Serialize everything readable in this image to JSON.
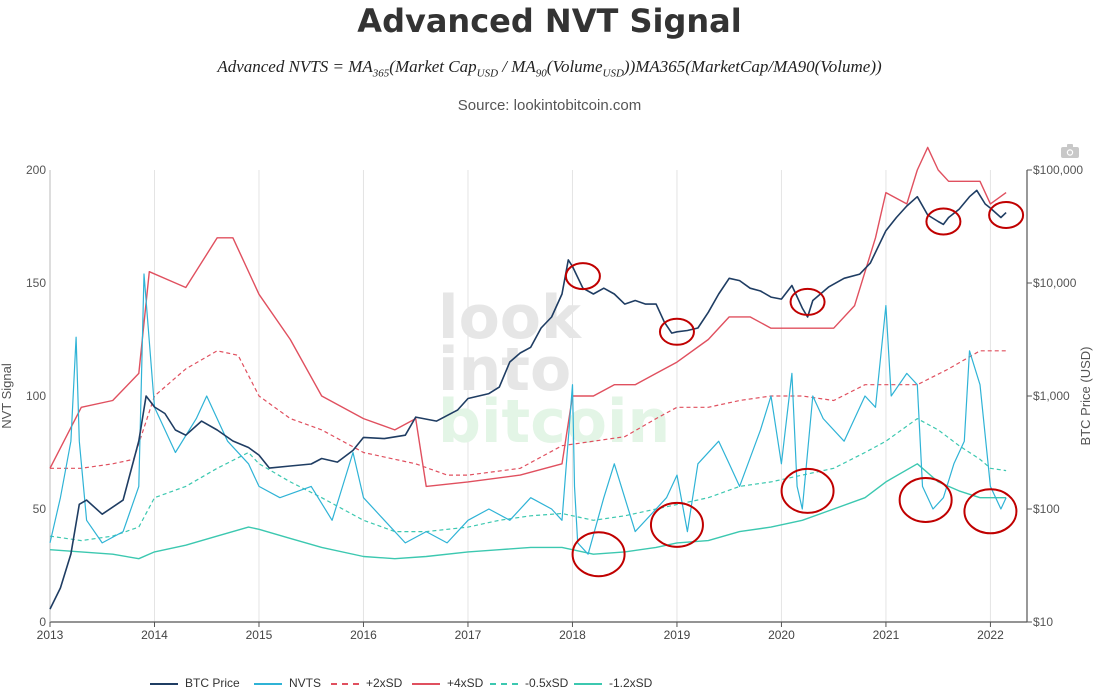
{
  "title": "Advanced NVT Signal",
  "formula": {
    "left": "Advanced NVTS = MA",
    "sub1": "365",
    "mid1": "(Market Cap",
    "sub2": "USD",
    "mid2": " / MA",
    "sub3": "90",
    "mid3": "(Volume",
    "sub4": "USD",
    "tail": "))MA365(MarketCap/MA90(Volume))"
  },
  "source": "Source: lookintobitcoin.com",
  "watermark": [
    "look",
    "into",
    "bitcoin"
  ],
  "camera_icon": "camera-icon",
  "chart_data": {
    "type": "line",
    "title": "Advanced NVT Signal",
    "x_ticks": [
      "2013",
      "2014",
      "2015",
      "2016",
      "2017",
      "2018",
      "2019",
      "2020",
      "2021",
      "2022"
    ],
    "x_range": [
      2013.0,
      2022.35
    ],
    "y_left": {
      "label": "NVT Signal",
      "ticks": [
        "0",
        "50",
        "100",
        "150",
        "200"
      ],
      "range": [
        0,
        200
      ]
    },
    "y_right": {
      "label": "BTC Price (USD)",
      "ticks": [
        "$10",
        "$100",
        "$1,000",
        "$10,000",
        "$100,000"
      ],
      "scale": "log",
      "range": [
        10,
        100000
      ]
    },
    "colors": {
      "btc": "#1f3d63",
      "nvts": "#2fb3d6",
      "plus2": "#e0505f",
      "plus4": "#e0505f",
      "minus05": "#3cc8b0",
      "minus12": "#3cc8b0",
      "circle": "#c00000",
      "grid": "#e4e4e4",
      "axis": "#555555"
    },
    "series": [
      {
        "name": "BTC Price",
        "axis": "right",
        "style": "solid",
        "x": [
          2013.0,
          2013.1,
          2013.2,
          2013.28,
          2013.35,
          2013.5,
          2013.7,
          2013.85,
          2013.92,
          2014.0,
          2014.1,
          2014.2,
          2014.3,
          2014.45,
          2014.6,
          2014.75,
          2014.9,
          2015.0,
          2015.1,
          2015.3,
          2015.5,
          2015.6,
          2015.75,
          2015.9,
          2016.0,
          2016.2,
          2016.4,
          2016.5,
          2016.7,
          2016.9,
          2017.0,
          2017.2,
          2017.3,
          2017.4,
          2017.5,
          2017.6,
          2017.7,
          2017.8,
          2017.9,
          2017.96,
          2018.0,
          2018.1,
          2018.2,
          2018.3,
          2018.4,
          2018.5,
          2018.6,
          2018.7,
          2018.8,
          2018.88,
          2018.95,
          2019.0,
          2019.1,
          2019.2,
          2019.3,
          2019.4,
          2019.5,
          2019.6,
          2019.7,
          2019.8,
          2019.9,
          2020.0,
          2020.1,
          2020.2,
          2020.25,
          2020.3,
          2020.45,
          2020.6,
          2020.75,
          2020.85,
          2021.0,
          2021.1,
          2021.2,
          2021.3,
          2021.4,
          2021.5,
          2021.55,
          2021.6,
          2021.7,
          2021.8,
          2021.87,
          2021.95,
          2022.0,
          2022.1,
          2022.15
        ],
        "y": [
          13,
          20,
          40,
          110,
          120,
          90,
          120,
          400,
          1000,
          800,
          700,
          500,
          450,
          600,
          500,
          400,
          350,
          300,
          230,
          240,
          250,
          280,
          260,
          330,
          430,
          420,
          450,
          650,
          600,
          750,
          950,
          1050,
          1200,
          2000,
          2400,
          2700,
          4000,
          5000,
          8000,
          16000,
          14000,
          9000,
          8000,
          9000,
          8000,
          6500,
          7000,
          6500,
          6500,
          4500,
          3600,
          3700,
          3800,
          4000,
          5500,
          8000,
          11000,
          10500,
          9000,
          8500,
          7500,
          7200,
          9500,
          6000,
          5000,
          7000,
          9200,
          11000,
          12000,
          15000,
          29000,
          38000,
          48000,
          58000,
          40000,
          35000,
          33000,
          38000,
          45000,
          58000,
          66000,
          50000,
          46000,
          38000,
          42000
        ]
      },
      {
        "name": "NVTS",
        "axis": "left",
        "style": "solid",
        "x": [
          2013.0,
          2013.1,
          2013.2,
          2013.25,
          2013.28,
          2013.35,
          2013.5,
          2013.7,
          2013.85,
          2013.9,
          2014.0,
          2014.2,
          2014.4,
          2014.5,
          2014.7,
          2014.9,
          2015.0,
          2015.2,
          2015.5,
          2015.7,
          2015.9,
          2016.0,
          2016.2,
          2016.4,
          2016.6,
          2016.8,
          2017.0,
          2017.2,
          2017.4,
          2017.6,
          2017.8,
          2017.9,
          2018.0,
          2018.02,
          2018.05,
          2018.15,
          2018.3,
          2018.4,
          2018.6,
          2018.8,
          2018.9,
          2019.0,
          2019.1,
          2019.2,
          2019.4,
          2019.5,
          2019.6,
          2019.8,
          2019.9,
          2020.0,
          2020.1,
          2020.15,
          2020.2,
          2020.3,
          2020.4,
          2020.6,
          2020.8,
          2020.9,
          2021.0,
          2021.05,
          2021.2,
          2021.3,
          2021.35,
          2021.45,
          2021.55,
          2021.65,
          2021.75,
          2021.8,
          2021.9,
          2022.0,
          2022.1,
          2022.15
        ],
        "y": [
          35,
          55,
          80,
          126,
          80,
          45,
          35,
          40,
          60,
          154,
          95,
          75,
          90,
          100,
          80,
          70,
          60,
          55,
          60,
          45,
          75,
          55,
          45,
          35,
          40,
          35,
          45,
          50,
          45,
          55,
          50,
          45,
          105,
          60,
          35,
          30,
          55,
          70,
          40,
          50,
          55,
          65,
          40,
          70,
          80,
          70,
          60,
          85,
          100,
          70,
          110,
          60,
          50,
          100,
          90,
          80,
          100,
          95,
          140,
          100,
          110,
          105,
          60,
          50,
          55,
          70,
          80,
          120,
          105,
          60,
          50,
          55
        ]
      },
      {
        "name": "+2xSD",
        "axis": "left",
        "style": "dashed",
        "x": [
          2013.0,
          2013.3,
          2013.6,
          2013.8,
          2014.0,
          2014.3,
          2014.6,
          2014.8,
          2015.0,
          2015.3,
          2015.6,
          2016.0,
          2016.5,
          2016.8,
          2017.0,
          2017.5,
          2017.9,
          2018.2,
          2018.5,
          2018.8,
          2019.0,
          2019.3,
          2019.6,
          2019.9,
          2020.2,
          2020.5,
          2020.8,
          2021.0,
          2021.3,
          2021.6,
          2021.9,
          2022.0,
          2022.15
        ],
        "y": [
          68,
          68,
          70,
          72,
          100,
          112,
          120,
          118,
          100,
          90,
          85,
          75,
          70,
          65,
          65,
          68,
          78,
          80,
          82,
          90,
          95,
          95,
          98,
          100,
          100,
          98,
          105,
          105,
          105,
          112,
          120,
          120,
          120
        ]
      },
      {
        "name": "+4xSD",
        "axis": "left",
        "style": "solid",
        "x": [
          2013.0,
          2013.3,
          2013.6,
          2013.85,
          2013.95,
          2014.2,
          2014.3,
          2014.6,
          2014.75,
          2015.0,
          2015.3,
          2015.6,
          2016.0,
          2016.3,
          2016.5,
          2016.6,
          2017.0,
          2017.5,
          2017.9,
          2018.0,
          2018.2,
          2018.4,
          2018.6,
          2018.8,
          2019.0,
          2019.3,
          2019.5,
          2019.7,
          2019.9,
          2020.2,
          2020.5,
          2020.7,
          2020.9,
          2021.0,
          2021.2,
          2021.3,
          2021.4,
          2021.5,
          2021.6,
          2021.9,
          2022.0,
          2022.15
        ],
        "y": [
          68,
          95,
          98,
          110,
          155,
          150,
          148,
          170,
          170,
          145,
          125,
          100,
          90,
          85,
          90,
          60,
          62,
          65,
          70,
          100,
          100,
          105,
          105,
          110,
          115,
          125,
          135,
          135,
          130,
          130,
          130,
          140,
          170,
          190,
          185,
          200,
          210,
          200,
          195,
          195,
          185,
          190
        ]
      },
      {
        "name": "-0.5xSD",
        "axis": "left",
        "style": "dashed",
        "x": [
          2013.0,
          2013.3,
          2013.6,
          2013.85,
          2014.0,
          2014.3,
          2014.6,
          2014.9,
          2015.0,
          2015.3,
          2015.6,
          2016.0,
          2016.3,
          2016.6,
          2017.0,
          2017.3,
          2017.6,
          2017.9,
          2018.2,
          2018.5,
          2018.8,
          2019.0,
          2019.3,
          2019.6,
          2019.9,
          2020.2,
          2020.5,
          2020.8,
          2021.0,
          2021.3,
          2021.5,
          2021.7,
          2021.9,
          2022.0,
          2022.15
        ],
        "y": [
          38,
          36,
          38,
          42,
          55,
          60,
          68,
          75,
          70,
          62,
          55,
          45,
          40,
          40,
          42,
          45,
          47,
          48,
          45,
          47,
          50,
          52,
          55,
          60,
          62,
          65,
          68,
          75,
          80,
          90,
          85,
          78,
          72,
          68,
          67
        ]
      },
      {
        "name": "-1.2xSD",
        "axis": "left",
        "style": "solid",
        "x": [
          2013.0,
          2013.3,
          2013.6,
          2013.85,
          2014.0,
          2014.3,
          2014.6,
          2014.9,
          2015.0,
          2015.3,
          2015.6,
          2016.0,
          2016.3,
          2016.6,
          2017.0,
          2017.3,
          2017.6,
          2017.9,
          2018.2,
          2018.5,
          2018.8,
          2019.0,
          2019.3,
          2019.6,
          2019.9,
          2020.2,
          2020.5,
          2020.8,
          2021.0,
          2021.3,
          2021.5,
          2021.7,
          2021.9,
          2022.0,
          2022.15
        ],
        "y": [
          32,
          31,
          30,
          28,
          31,
          34,
          38,
          42,
          41,
          37,
          33,
          29,
          28,
          29,
          31,
          32,
          33,
          33,
          30,
          31,
          33,
          35,
          36,
          40,
          42,
          45,
          50,
          55,
          62,
          70,
          62,
          58,
          55,
          55,
          55
        ]
      }
    ],
    "highlight_circles": [
      {
        "x": 2018.1,
        "y_price": 11500
      },
      {
        "x": 2019.0,
        "y_price": 3700
      },
      {
        "x": 2020.25,
        "y_price": 6800
      },
      {
        "x": 2021.55,
        "y_price": 35000
      },
      {
        "x": 2022.15,
        "y_price": 40000
      },
      {
        "x": 2018.25,
        "y": 30
      },
      {
        "x": 2019.0,
        "y": 43
      },
      {
        "x": 2020.25,
        "y": 58
      },
      {
        "x": 2021.38,
        "y": 54
      },
      {
        "x": 2022.0,
        "y": 49
      }
    ]
  },
  "legend": [
    {
      "label": "BTC Price",
      "series": "btc",
      "dash": false
    },
    {
      "label": "NVTS",
      "series": "nvts",
      "dash": false
    },
    {
      "label": "+2xSD",
      "series": "plus2",
      "dash": true
    },
    {
      "label": "+4xSD",
      "series": "plus4",
      "dash": false
    },
    {
      "label": "-0.5xSD",
      "series": "minus05",
      "dash": true
    },
    {
      "label": "-1.2xSD",
      "series": "minus12",
      "dash": false
    }
  ]
}
